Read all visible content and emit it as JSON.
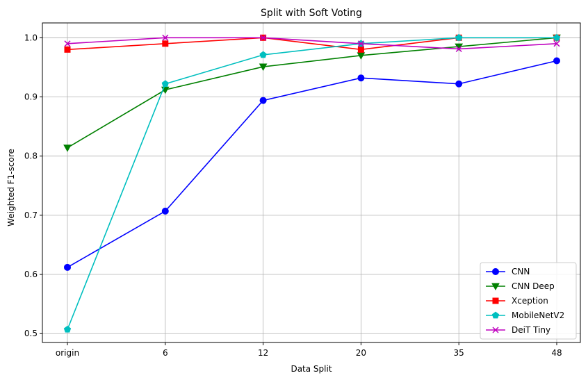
{
  "chart_data": {
    "type": "line",
    "title": "Split with Soft Voting",
    "xlabel": "Data Split",
    "ylabel": "Weighted F1-score",
    "categories": [
      "origin",
      "6",
      "12",
      "20",
      "35",
      "48"
    ],
    "ylim": [
      0.485,
      1.025
    ],
    "yticks": [
      0.5,
      0.6,
      0.7,
      0.8,
      0.9,
      1.0
    ],
    "ytick_labels": [
      "0.5",
      "0.6",
      "0.7",
      "0.8",
      "0.9",
      "1.0"
    ],
    "grid": true,
    "legend_position": "lower-right",
    "series": [
      {
        "name": "CNN",
        "color": "#0000ff",
        "marker": "circle",
        "values": [
          0.612,
          0.707,
          0.894,
          0.932,
          0.922,
          0.961
        ]
      },
      {
        "name": "CNN Deep",
        "color": "#008000",
        "marker": "triangle-down",
        "values": [
          0.814,
          0.912,
          0.951,
          0.97,
          0.985,
          1.0
        ]
      },
      {
        "name": "Xception",
        "color": "#ff0000",
        "marker": "square",
        "values": [
          0.98,
          0.99,
          1.0,
          0.98,
          1.0,
          1.0
        ]
      },
      {
        "name": "MobileNetV2",
        "color": "#00bfbf",
        "marker": "pentagon",
        "values": [
          0.507,
          0.922,
          0.971,
          0.99,
          1.0,
          1.0
        ]
      },
      {
        "name": "DeiT Tiny",
        "color": "#bf00bf",
        "marker": "x",
        "values": [
          0.99,
          1.0,
          1.0,
          0.99,
          0.981,
          0.99
        ]
      }
    ]
  }
}
